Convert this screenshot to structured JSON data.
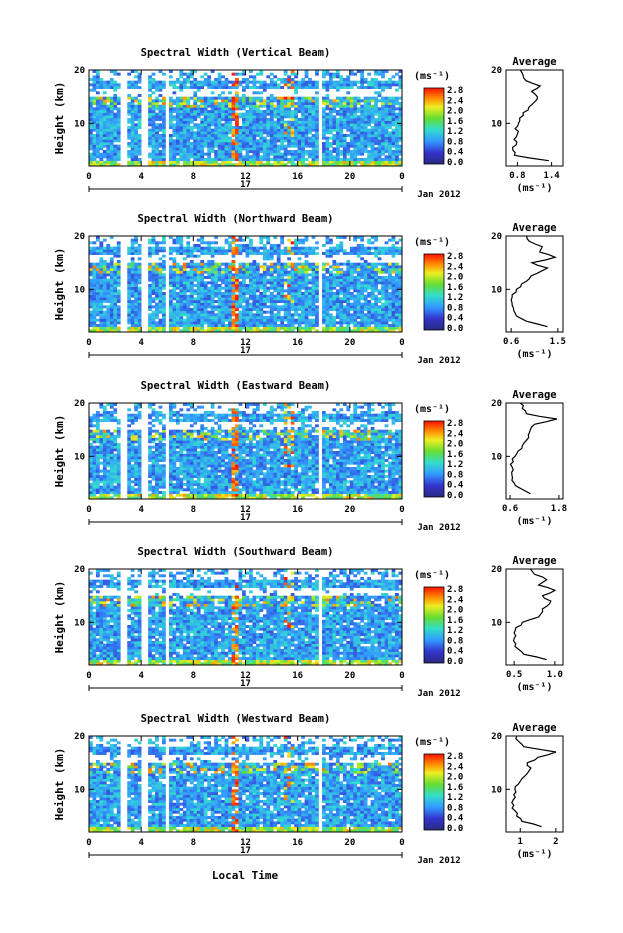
{
  "figure": {
    "x_axis_label": "Local Time",
    "colorbar_unit": "(ms⁻¹)",
    "colorbar_ticks": [
      "0.0",
      "0.4",
      "0.8",
      "1.2",
      "1.6",
      "2.0",
      "2.4",
      "2.8"
    ],
    "day_label": "17",
    "month_label": "Jan 2012",
    "y_axis_label": "Height (km)",
    "avg_title": "Average",
    "avg_unit": "(ms⁻¹)",
    "colors": {
      "low": "#3333cc",
      "mid": "#33cc66",
      "high": "#ff2200",
      "gap": "#ffffff"
    }
  },
  "chart_data": [
    {
      "type": "heatmap",
      "title": "Spectral Width (Vertical Beam)",
      "x_ticks": [
        "0",
        "4",
        "8",
        "12",
        "16",
        "20",
        "0"
      ],
      "y_ticks": [
        "20",
        "10"
      ],
      "xlim": [
        0,
        24
      ],
      "ylim": [
        2,
        20
      ],
      "avg_x_ticks": [
        "0.8",
        "1.4"
      ],
      "avg_xlim": [
        0.6,
        1.6
      ],
      "avg_profile": {
        "height": [
          3,
          4,
          5,
          6,
          7,
          8,
          9,
          10,
          11,
          12,
          13,
          14,
          15,
          16,
          17,
          18,
          19,
          20
        ],
        "value": [
          1.35,
          0.75,
          0.72,
          0.78,
          0.74,
          0.8,
          0.76,
          0.82,
          0.84,
          0.9,
          1.0,
          1.1,
          1.15,
          1.05,
          1.2,
          0.95,
          0.9,
          0.85
        ]
      }
    },
    {
      "type": "heatmap",
      "title": "Spectral Width (Northward Beam)",
      "x_ticks": [
        "0",
        "4",
        "8",
        "12",
        "16",
        "20",
        "0"
      ],
      "y_ticks": [
        "20",
        "10"
      ],
      "xlim": [
        0,
        24
      ],
      "ylim": [
        2,
        20
      ],
      "avg_x_ticks": [
        "0.6",
        "1.5"
      ],
      "avg_xlim": [
        0.5,
        1.6
      ],
      "avg_profile": {
        "height": [
          3,
          4,
          5,
          6,
          7,
          8,
          9,
          10,
          11,
          12,
          13,
          14,
          15,
          16,
          17,
          18,
          19,
          20
        ],
        "value": [
          1.3,
          0.9,
          0.7,
          0.65,
          0.62,
          0.6,
          0.62,
          0.7,
          0.8,
          0.95,
          1.1,
          1.3,
          1.0,
          1.45,
          1.15,
          1.2,
          0.95,
          0.9
        ]
      }
    },
    {
      "type": "heatmap",
      "title": "Spectral Width (Eastward Beam)",
      "x_ticks": [
        "0",
        "4",
        "8",
        "12",
        "16",
        "20",
        "0"
      ],
      "y_ticks": [
        "20",
        "10"
      ],
      "xlim": [
        0,
        24
      ],
      "ylim": [
        2,
        20
      ],
      "avg_x_ticks": [
        "0.6",
        "1.8"
      ],
      "avg_xlim": [
        0.5,
        1.9
      ],
      "avg_profile": {
        "height": [
          3,
          4,
          5,
          6,
          7,
          8,
          9,
          10,
          11,
          12,
          13,
          14,
          15,
          16,
          17,
          18,
          19,
          20
        ],
        "value": [
          1.1,
          0.85,
          0.7,
          0.66,
          0.64,
          0.65,
          0.68,
          0.72,
          0.8,
          0.9,
          1.0,
          1.05,
          1.1,
          1.2,
          1.75,
          1.0,
          0.9,
          0.85
        ]
      }
    },
    {
      "type": "heatmap",
      "title": "Spectral Width (Southward Beam)",
      "x_ticks": [
        "0",
        "4",
        "8",
        "12",
        "16",
        "20",
        "0"
      ],
      "y_ticks": [
        "20",
        "10"
      ],
      "xlim": [
        0,
        24
      ],
      "ylim": [
        2,
        20
      ],
      "avg_x_ticks": [
        "0.5",
        "1.0"
      ],
      "avg_xlim": [
        0.4,
        1.1
      ],
      "avg_profile": {
        "height": [
          3,
          4,
          5,
          6,
          7,
          8,
          9,
          10,
          11,
          12,
          13,
          14,
          15,
          16,
          17,
          18,
          19,
          20
        ],
        "value": [
          0.9,
          0.62,
          0.55,
          0.52,
          0.5,
          0.5,
          0.52,
          0.6,
          0.8,
          0.85,
          0.9,
          0.95,
          0.85,
          1.0,
          0.8,
          0.9,
          0.75,
          0.7
        ]
      }
    },
    {
      "type": "heatmap",
      "title": "Spectral Width (Westward Beam)",
      "x_ticks": [
        "0",
        "4",
        "8",
        "12",
        "16",
        "20",
        "0"
      ],
      "y_ticks": [
        "20",
        "10"
      ],
      "xlim": [
        0,
        24
      ],
      "ylim": [
        2,
        20
      ],
      "avg_x_ticks": [
        "1",
        "2"
      ],
      "avg_xlim": [
        0.6,
        2.2
      ],
      "avg_profile": {
        "height": [
          3,
          4,
          5,
          6,
          7,
          8,
          9,
          10,
          11,
          12,
          13,
          14,
          15,
          16,
          17,
          18,
          19,
          20
        ],
        "value": [
          1.6,
          1.05,
          0.9,
          0.85,
          0.82,
          0.8,
          0.82,
          0.85,
          0.95,
          1.05,
          1.2,
          1.3,
          1.2,
          1.5,
          2.0,
          1.1,
          0.95,
          0.9
        ]
      }
    }
  ]
}
